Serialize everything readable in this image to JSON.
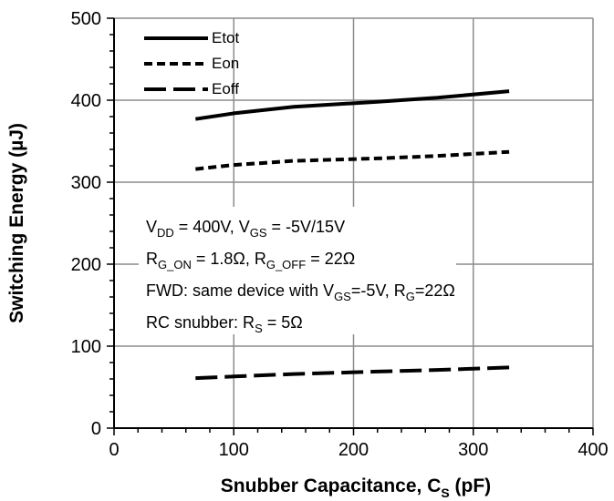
{
  "chart_data": {
    "type": "line",
    "xlabel_main": "Snubber Capacitance, C",
    "xlabel_sub": "S",
    "xlabel_unit": " (pF)",
    "ylabel": "Switching Energy (µJ)",
    "xlim": [
      0,
      400
    ],
    "ylim": [
      0,
      500
    ],
    "xticks": [
      0,
      100,
      200,
      300,
      400
    ],
    "yticks": [
      0,
      100,
      200,
      300,
      400,
      500
    ],
    "grid": true,
    "legend_position": "top-left",
    "series": [
      {
        "name": "Etot",
        "style": "solid",
        "x": [
          68,
          100,
          150,
          220,
          270,
          330
        ],
        "y": [
          377,
          384,
          392,
          398,
          403,
          411
        ]
      },
      {
        "name": "Eon",
        "style": "short-dash",
        "x": [
          68,
          100,
          150,
          220,
          270,
          330
        ],
        "y": [
          316,
          321,
          326,
          329,
          332,
          337
        ]
      },
      {
        "name": "Eoff",
        "style": "long-dash",
        "x": [
          68,
          100,
          150,
          220,
          270,
          330
        ],
        "y": [
          61,
          63,
          66,
          69,
          71,
          74
        ]
      }
    ],
    "annotation_lines": [
      [
        {
          "t": "V",
          "sub": false
        },
        {
          "t": "DD",
          "sub": true
        },
        {
          "t": " = 400V, V",
          "sub": false
        },
        {
          "t": "GS",
          "sub": true
        },
        {
          "t": " = -5V/15V",
          "sub": false
        }
      ],
      [
        {
          "t": "R",
          "sub": false
        },
        {
          "t": "G_ON",
          "sub": true
        },
        {
          "t": " = 1.8Ω, R",
          "sub": false
        },
        {
          "t": "G_OFF",
          "sub": true
        },
        {
          "t": " = 22Ω",
          "sub": false
        }
      ],
      [
        {
          "t": "FWD: same device with V",
          "sub": false
        },
        {
          "t": "GS",
          "sub": true
        },
        {
          "t": "=-5V, R",
          "sub": false
        },
        {
          "t": "G",
          "sub": true
        },
        {
          "t": "=22Ω",
          "sub": false
        }
      ],
      [
        {
          "t": "RC snubber: R",
          "sub": false
        },
        {
          "t": "S",
          "sub": true
        },
        {
          "t": " = 5Ω",
          "sub": false
        }
      ]
    ]
  }
}
